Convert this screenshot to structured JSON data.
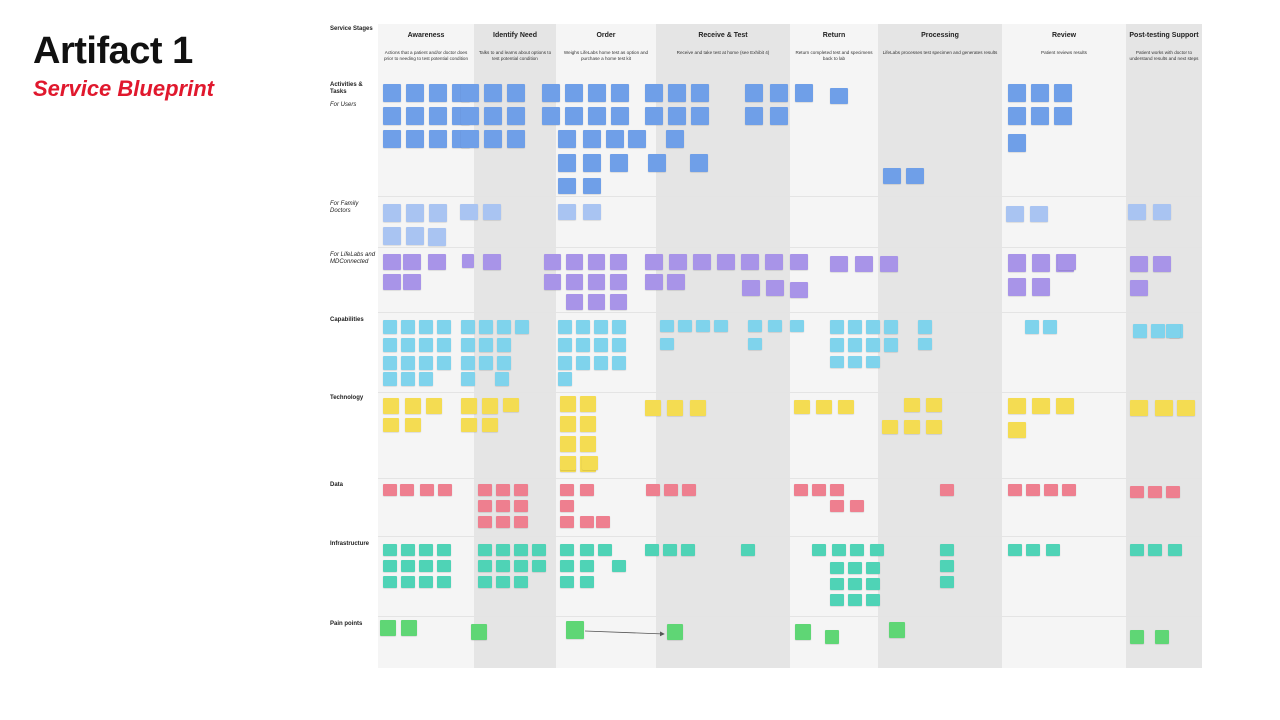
{
  "artifact": {
    "title": "Artifact 1",
    "subtitle": "Service Blueprint"
  },
  "colors": {
    "users": "#6f9fe8",
    "family_doctors": "#a9c4f2",
    "lifelabs": "#a894e8",
    "capabilities": "#7fd3ec",
    "technology": "#f4dc52",
    "data": "#ee7f8f",
    "infrastructure": "#4fd3b6",
    "pain_points": "#5fd675",
    "shade": "#e5e5e5",
    "light": "#f5f5f5",
    "accent": "#e0182d"
  },
  "blueprint": {
    "corner_label": "Service Stages",
    "stages": [
      {
        "name": "Awareness",
        "description": "Actions that a patient and/or doctor does prior to needing to test potential condition"
      },
      {
        "name": "Identify Need",
        "description": "Talks to and learns about options to test potential condition"
      },
      {
        "name": "Order",
        "description": "Weighs LifeLabs home test as option and purchase a home test kit"
      },
      {
        "name": "Receive & Test",
        "description": "Receive and take test at home (see Exhibit 4)"
      },
      {
        "name": "Return",
        "description": "Return completed test and specimens back to lab"
      },
      {
        "name": "Processing",
        "description": "LifeLabs processes test specimen and generates results"
      },
      {
        "name": "Review",
        "description": "Patient reviews results"
      },
      {
        "name": "Post-testing Support",
        "description": "Patient works with doctor to understand results and next steps"
      }
    ],
    "rows": [
      {
        "label": "Activities & Tasks",
        "style": "bold"
      },
      {
        "label": "For Users",
        "style": "italic"
      },
      {
        "label": "For Family Doctors",
        "style": "italic"
      },
      {
        "label": "For LifeLabs and MDConnected",
        "style": "italic"
      },
      {
        "label": "Capabilities",
        "style": "bold"
      },
      {
        "label": "Technology",
        "style": "bold"
      },
      {
        "label": "Data",
        "style": "bold"
      },
      {
        "label": "Infrastructure",
        "style": "bold"
      },
      {
        "label": "Pain points",
        "style": "bold"
      }
    ]
  }
}
